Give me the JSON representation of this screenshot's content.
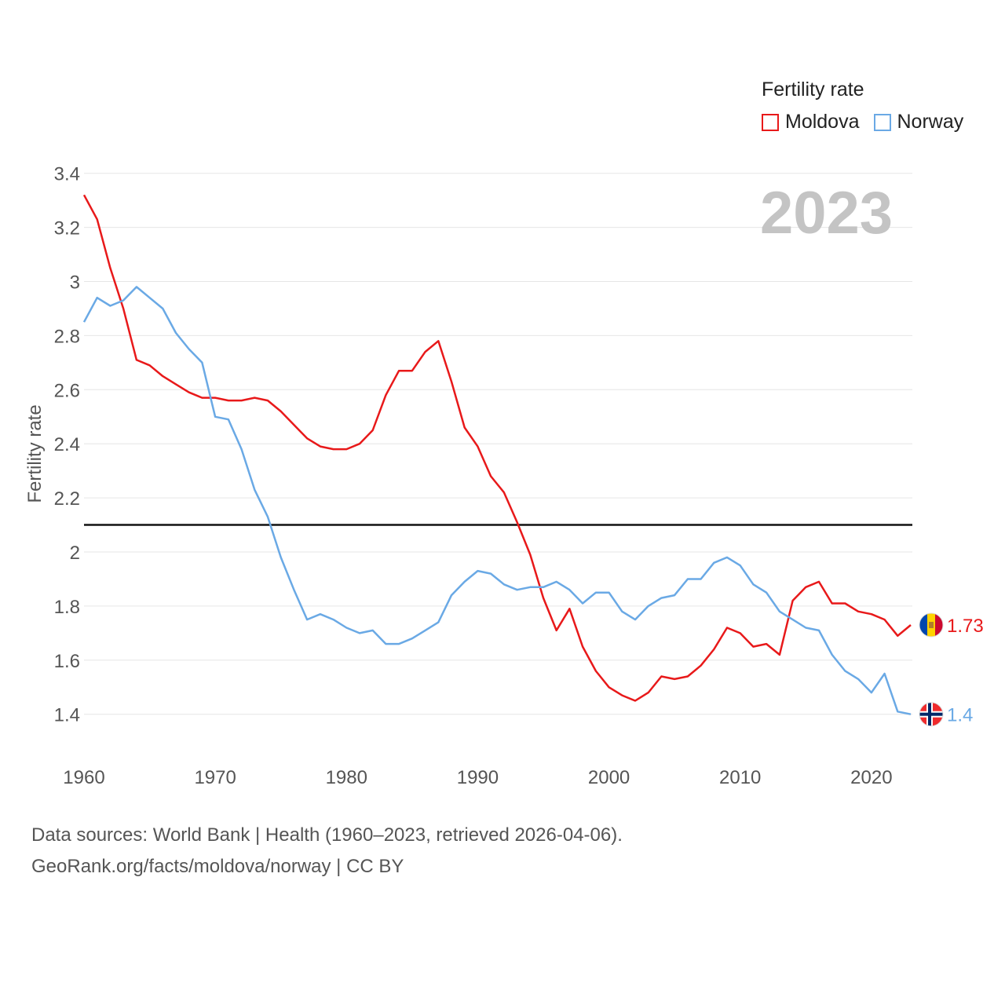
{
  "legend": {
    "title": "Fertility rate",
    "items": [
      {
        "label": "Moldova",
        "color": "#e8191a"
      },
      {
        "label": "Norway",
        "color": "#6aa9e5"
      }
    ]
  },
  "year_label": "2023",
  "source": {
    "line1": "Data sources: World Bank | Health (1960–2023, retrieved 2026-04-06).",
    "line2": "GeoRank.org/facts/moldova/norway | CC BY"
  },
  "chart_data": {
    "type": "line",
    "title": "",
    "xlabel": "",
    "ylabel": "Fertility rate",
    "xlim": [
      1960,
      2023
    ],
    "ylim": [
      1.2,
      3.4
    ],
    "x_ticks": [
      1960,
      1970,
      1980,
      1990,
      2000,
      2010,
      2020
    ],
    "y_ticks": [
      1.4,
      1.6,
      1.8,
      2,
      2.2,
      2.4,
      2.6,
      2.8,
      3,
      3.2,
      3.4
    ],
    "reference_line": {
      "y": 2.1,
      "color": "#111111"
    },
    "x": [
      1960,
      1961,
      1962,
      1963,
      1964,
      1965,
      1966,
      1967,
      1968,
      1969,
      1970,
      1971,
      1972,
      1973,
      1974,
      1975,
      1976,
      1977,
      1978,
      1979,
      1980,
      1981,
      1982,
      1983,
      1984,
      1985,
      1986,
      1987,
      1988,
      1989,
      1990,
      1991,
      1992,
      1993,
      1994,
      1995,
      1996,
      1997,
      1998,
      1999,
      2000,
      2001,
      2002,
      2003,
      2004,
      2005,
      2006,
      2007,
      2008,
      2009,
      2010,
      2011,
      2012,
      2013,
      2014,
      2015,
      2016,
      2017,
      2018,
      2019,
      2020,
      2021,
      2022,
      2023
    ],
    "series": [
      {
        "name": "Moldova",
        "color": "#e8191a",
        "end_label": "1.73",
        "values": [
          3.32,
          3.23,
          3.05,
          2.9,
          2.71,
          2.69,
          2.65,
          2.62,
          2.59,
          2.57,
          2.57,
          2.56,
          2.56,
          2.57,
          2.56,
          2.52,
          2.47,
          2.42,
          2.39,
          2.38,
          2.38,
          2.4,
          2.45,
          2.58,
          2.67,
          2.67,
          2.74,
          2.78,
          2.63,
          2.46,
          2.39,
          2.28,
          2.22,
          2.11,
          1.99,
          1.83,
          1.71,
          1.79,
          1.65,
          1.56,
          1.5,
          1.47,
          1.45,
          1.48,
          1.54,
          1.53,
          1.54,
          1.58,
          1.64,
          1.72,
          1.7,
          1.65,
          1.66,
          1.62,
          1.82,
          1.87,
          1.89,
          1.81,
          1.81,
          1.78,
          1.77,
          1.75,
          1.69,
          1.73
        ]
      },
      {
        "name": "Norway",
        "color": "#6aa9e5",
        "end_label": "1.4",
        "values": [
          2.85,
          2.94,
          2.91,
          2.93,
          2.98,
          2.94,
          2.9,
          2.81,
          2.75,
          2.7,
          2.5,
          2.49,
          2.38,
          2.23,
          2.13,
          1.98,
          1.86,
          1.75,
          1.77,
          1.75,
          1.72,
          1.7,
          1.71,
          1.66,
          1.66,
          1.68,
          1.71,
          1.74,
          1.84,
          1.89,
          1.93,
          1.92,
          1.88,
          1.86,
          1.87,
          1.87,
          1.89,
          1.86,
          1.81,
          1.85,
          1.85,
          1.78,
          1.75,
          1.8,
          1.83,
          1.84,
          1.9,
          1.9,
          1.96,
          1.98,
          1.95,
          1.88,
          1.85,
          1.78,
          1.75,
          1.72,
          1.71,
          1.62,
          1.56,
          1.53,
          1.48,
          1.55,
          1.41,
          1.4
        ]
      }
    ]
  }
}
